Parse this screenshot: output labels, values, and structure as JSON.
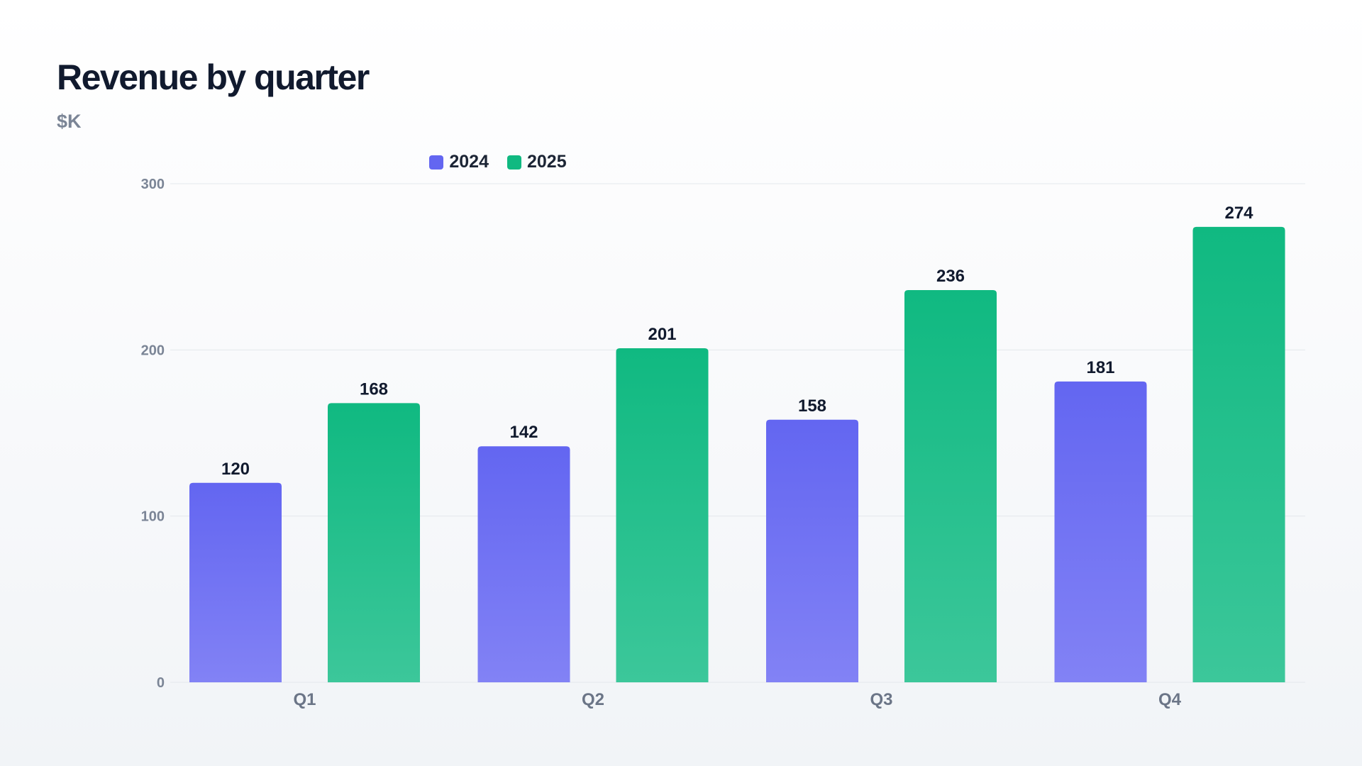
{
  "chart_data": {
    "type": "bar",
    "title": "Revenue by quarter",
    "subtitle": "$K",
    "xlabel": "",
    "ylabel": "",
    "categories": [
      "Q1",
      "Q2",
      "Q3",
      "Q4"
    ],
    "series": [
      {
        "name": "2024",
        "color": "#6366f1",
        "values": [
          120,
          142,
          158,
          181
        ]
      },
      {
        "name": "2025",
        "color": "#10b981",
        "values": [
          168,
          201,
          236,
          274
        ]
      }
    ],
    "ylim": [
      0,
      300
    ],
    "yticks": [
      0,
      100,
      200,
      300
    ],
    "grid": true,
    "legend_position": "top-center",
    "data_labels": true
  }
}
